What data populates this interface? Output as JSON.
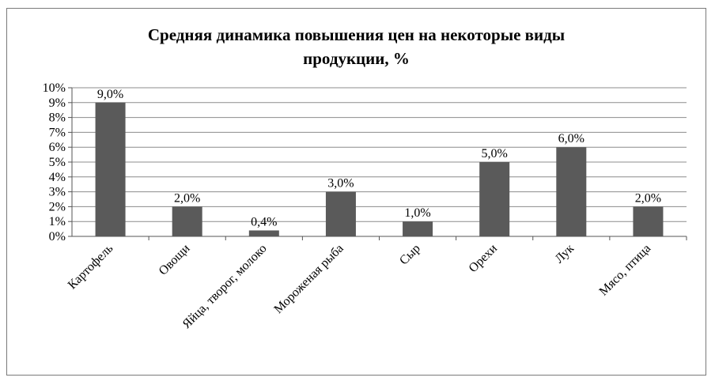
{
  "chart_data": {
    "type": "bar",
    "title_lines": [
      "Средняя динамика повышения цен на некоторые виды",
      "продукции, %"
    ],
    "categories": [
      "Картофель",
      "Овощи",
      "Яйца, творог, молоко",
      "Мороженая рыба",
      "Сыр",
      "Орехи",
      "Лук",
      "Мясо, птица"
    ],
    "values": [
      9.0,
      2.0,
      0.4,
      3.0,
      1.0,
      5.0,
      6.0,
      2.0
    ],
    "data_labels": [
      "9,0%",
      "2,0%",
      "0,4%",
      "3,0%",
      "1,0%",
      "5,0%",
      "6,0%",
      "2,0%"
    ],
    "y_ticks": [
      "0%",
      "1%",
      "2%",
      "3%",
      "4%",
      "5%",
      "6%",
      "7%",
      "8%",
      "9%",
      "10%"
    ],
    "ylim": [
      0,
      10
    ],
    "grid": true,
    "legend": "none",
    "bar_color": "#5a5a5a",
    "grid_color": "#8c8c8c"
  }
}
